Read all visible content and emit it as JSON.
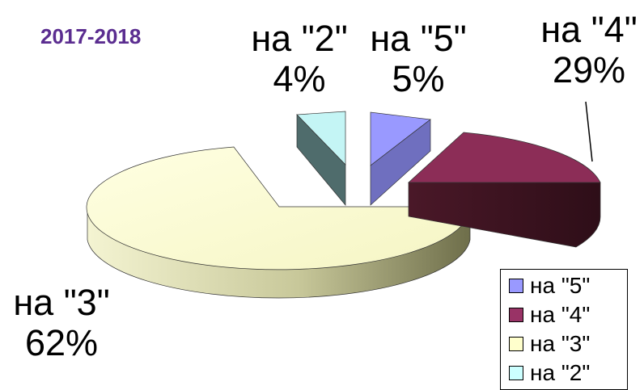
{
  "chart_data": {
    "type": "pie",
    "title": "2017-2018",
    "categories": [
      "на \"5\"",
      "на \"4\"",
      "на \"3\"",
      "на \"2\""
    ],
    "values": [
      5,
      29,
      62,
      4
    ],
    "value_labels": [
      "5%",
      "29%",
      "62%",
      "4%"
    ],
    "colors": [
      "#9999ff",
      "#993366",
      "#ffffcc",
      "#ccffff"
    ],
    "side_colors": [
      "#6666b3",
      "#3f1222",
      "#8a8a5c",
      "#4d6b6b"
    ],
    "legend": {
      "position": "bottom-right",
      "entries": [
        "на \"5\"",
        "на \"4\"",
        "на \"3\"",
        "на \"2\""
      ]
    },
    "exploded": true,
    "three_d": true
  }
}
